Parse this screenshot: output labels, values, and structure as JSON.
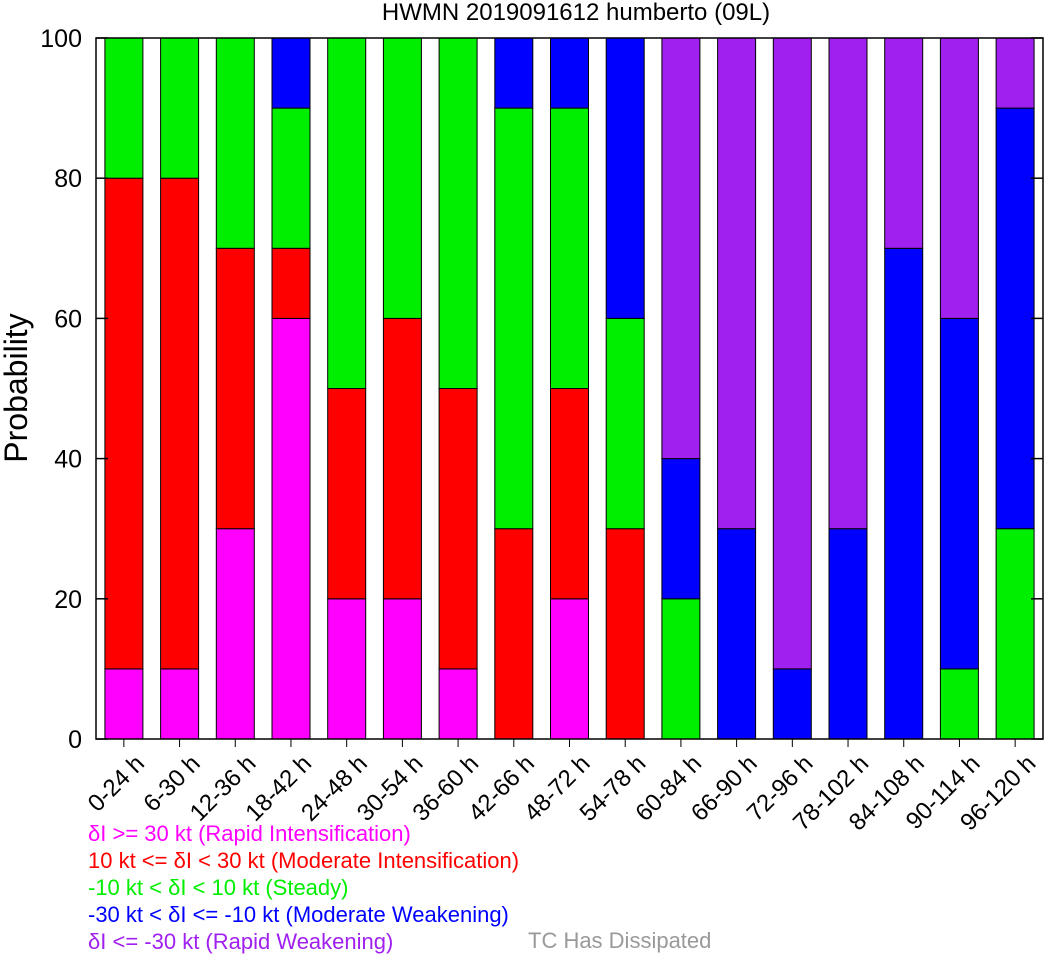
{
  "chart_data": {
    "type": "bar",
    "stacked": true,
    "title": "HWMN 2019091612 humberto (09L)",
    "xlabel": "",
    "ylabel": "Probability",
    "ylim": [
      0,
      100
    ],
    "yticks": [
      0,
      20,
      40,
      60,
      80,
      100
    ],
    "grid": false,
    "categories": [
      "0-24 h",
      "6-30 h",
      "12-36 h",
      "18-42 h",
      "24-48 h",
      "30-54 h",
      "36-60 h",
      "42-66 h",
      "48-72 h",
      "54-78 h",
      "60-84 h",
      "66-90 h",
      "72-96 h",
      "78-102 h",
      "84-108 h",
      "90-114 h",
      "96-120 h"
    ],
    "series": [
      {
        "name": "δI >= 30 kt (Rapid Intensification)",
        "color": "#ff00ff",
        "values": [
          10,
          10,
          30,
          60,
          20,
          20,
          10,
          0,
          20,
          0,
          0,
          0,
          0,
          0,
          0,
          0,
          0
        ]
      },
      {
        "name": "10 kt <= δI < 30 kt (Moderate Intensification)",
        "color": "#ff0000",
        "values": [
          70,
          70,
          40,
          10,
          30,
          40,
          40,
          30,
          30,
          30,
          0,
          0,
          0,
          0,
          0,
          0,
          0
        ]
      },
      {
        "name": "-10 kt < δI < 10 kt (Steady)",
        "color": "#00ee00",
        "values": [
          20,
          20,
          30,
          20,
          50,
          40,
          50,
          60,
          40,
          30,
          20,
          0,
          0,
          0,
          0,
          10,
          30
        ]
      },
      {
        "name": "-30 kt < δI <= -10 kt (Moderate Weakening)",
        "color": "#0000ff",
        "values": [
          0,
          0,
          0,
          10,
          0,
          0,
          0,
          10,
          10,
          40,
          20,
          30,
          10,
          30,
          70,
          50,
          60
        ]
      },
      {
        "name": "δI <= -30 kt (Rapid Weakening)",
        "color": "#a020f0",
        "values": [
          0,
          0,
          0,
          0,
          0,
          0,
          0,
          0,
          0,
          0,
          60,
          70,
          90,
          70,
          30,
          40,
          10
        ]
      }
    ],
    "dissipated": {
      "label": "TC Has Dissipated",
      "color": "#999999"
    }
  }
}
